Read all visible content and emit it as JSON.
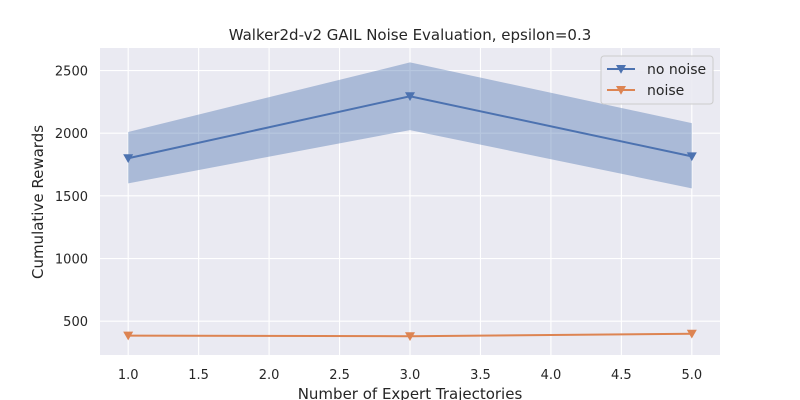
{
  "chart_data": {
    "type": "line",
    "title": "Walker2d-v2 GAIL Noise Evaluation, epsilon=0.3",
    "xlabel": "Number of Expert Trajectories",
    "ylabel": "Cumulative Rewards",
    "xlim": [
      0.8,
      5.2
    ],
    "ylim": [
      230,
      2680
    ],
    "xticks": [
      1.0,
      1.5,
      2.0,
      2.5,
      3.0,
      3.5,
      4.0,
      4.5,
      5.0
    ],
    "xtick_labels": [
      "1.0",
      "1.5",
      "2.0",
      "2.5",
      "3.0",
      "3.5",
      "4.0",
      "4.5",
      "5.0"
    ],
    "yticks": [
      500,
      1000,
      1500,
      2000,
      2500
    ],
    "ytick_labels": [
      "500",
      "1000",
      "1500",
      "2000",
      "2500"
    ],
    "grid": true,
    "legend_position": "top-right",
    "x": [
      1,
      3,
      5
    ],
    "series": [
      {
        "name": "no noise",
        "color": "#4c72b0",
        "marker": "triangle-down",
        "values": [
          1800,
          2295,
          1815
        ],
        "band_lower": [
          1600,
          2025,
          1560
        ],
        "band_upper": [
          2010,
          2565,
          2080
        ]
      },
      {
        "name": "noise",
        "color": "#dd8452",
        "marker": "triangle-down",
        "values": [
          385,
          380,
          400
        ]
      }
    ]
  }
}
